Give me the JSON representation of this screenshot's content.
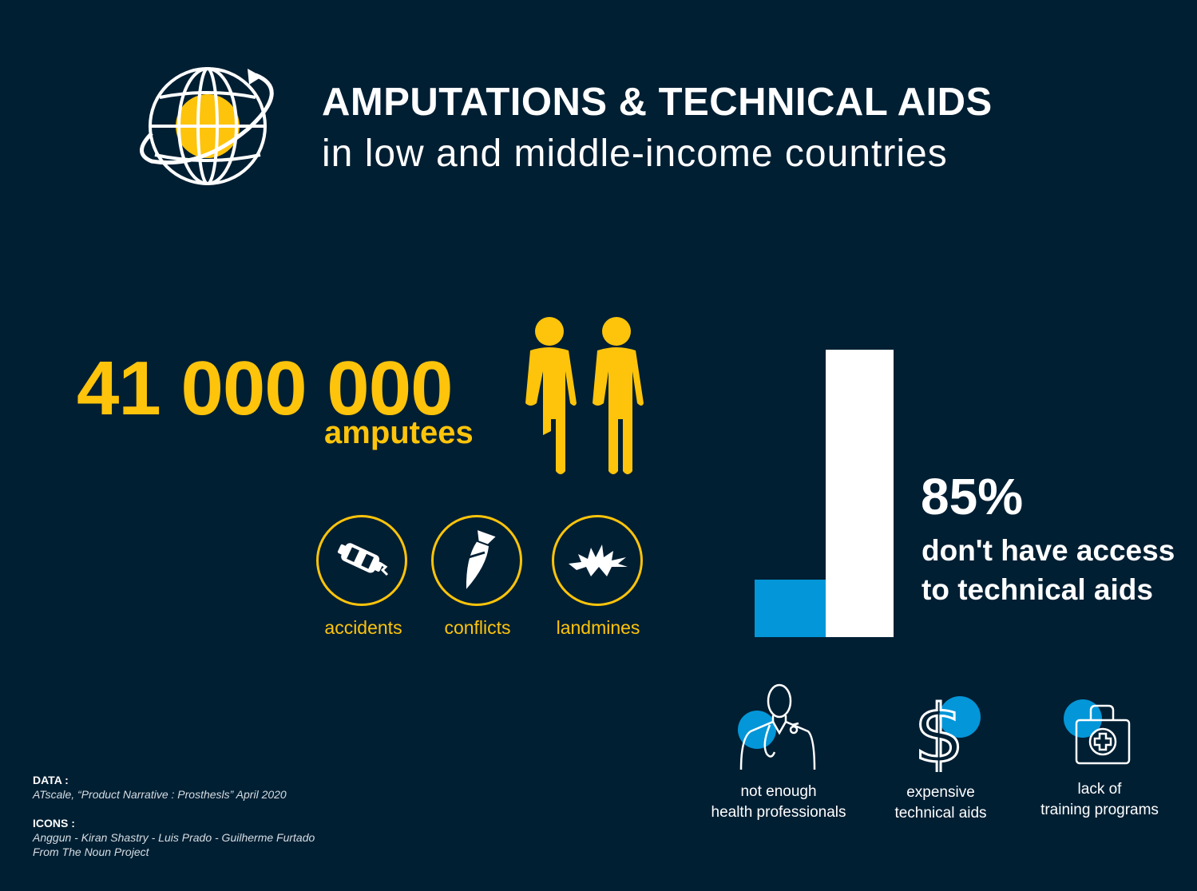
{
  "header": {
    "title": "AMPUTATIONS & TECHNICAL AIDS",
    "subtitle": "in low and middle-income countries",
    "logo_icon": "globe-orbit-icon"
  },
  "amputees": {
    "number": "41 000 000",
    "label": "amputees",
    "icon": "amputee-figures-icon"
  },
  "causes": [
    {
      "label": "accidents",
      "icon": "car-crash-icon"
    },
    {
      "label": "conflicts",
      "icon": "bomb-icon"
    },
    {
      "label": "landmines",
      "icon": "explosion-icon"
    }
  ],
  "access": {
    "percent": "85%",
    "text": "don't have access to technical aids",
    "percent_value": 85
  },
  "barriers": [
    {
      "line1": "not enough",
      "line2": "health professionals",
      "icon": "doctor-icon"
    },
    {
      "line1": "expensive",
      "line2": "technical aids",
      "icon": "dollar-icon"
    },
    {
      "line1": "lack of",
      "line2": "training programs",
      "icon": "medical-kit-icon"
    }
  ],
  "credits": {
    "data_heading": "DATA :",
    "data_source": "ATscale, “Product Narrative : Prosthesls” April 2020",
    "icons_heading": "ICONS :",
    "icons_authors": "Anggun - Kiran Shastry - Luis Prado - Guilherme Furtado",
    "icons_source": "From The Noun Project"
  },
  "colors": {
    "background": "#011f33",
    "accent_yellow": "#fdc40b",
    "accent_blue": "#0396d9",
    "white": "#ffffff"
  }
}
